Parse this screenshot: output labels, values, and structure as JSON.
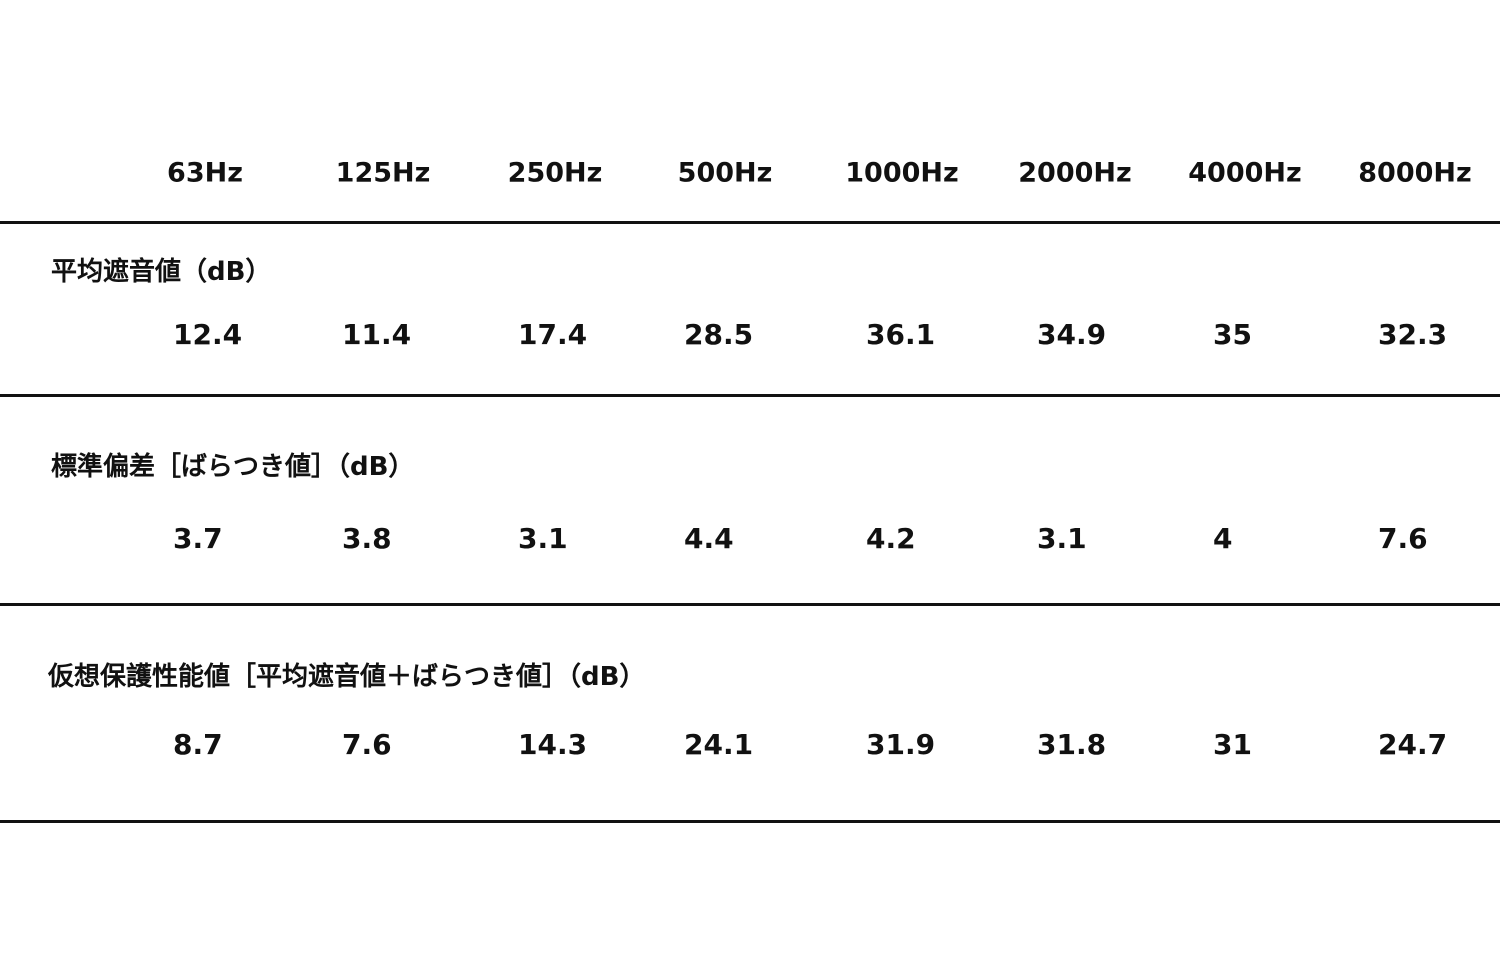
{
  "table": {
    "columns": [
      "63Hz",
      "125Hz",
      "250Hz",
      "500Hz",
      "1000Hz",
      "2000Hz",
      "4000Hz",
      "8000Hz"
    ],
    "rows": [
      {
        "label": "平均遮音値（dB）",
        "values": [
          "12.4",
          "11.4",
          "17.4",
          "28.5",
          "36.1",
          "34.9",
          "35",
          "32.3"
        ]
      },
      {
        "label": "標準偏差［ばらつき値］（dB）",
        "values": [
          "3.7",
          "3.8",
          "3.1",
          "4.4",
          "4.2",
          "3.1",
          "4",
          "7.6"
        ]
      },
      {
        "label": "仮想保護性能値［平均遮音値＋ばらつき値］（dB）",
        "values": [
          "8.7",
          "7.6",
          "14.3",
          "24.1",
          "31.9",
          "31.8",
          "31",
          "24.7"
        ]
      }
    ]
  }
}
